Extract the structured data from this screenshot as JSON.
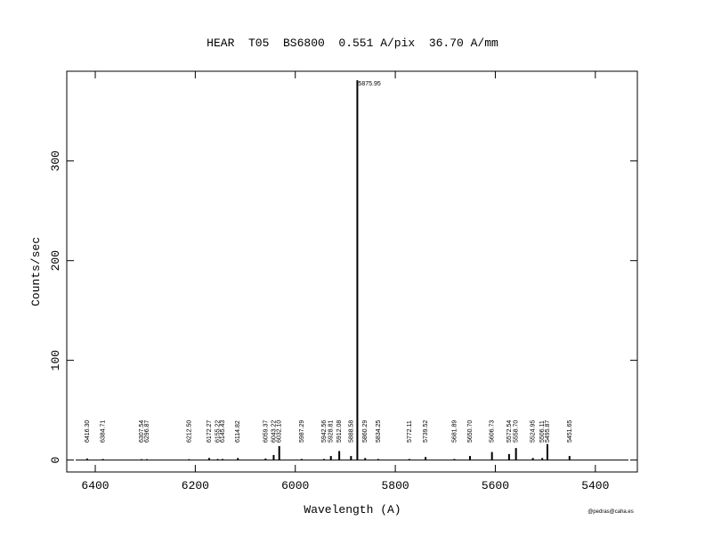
{
  "chart_data": {
    "type": "spectrum",
    "title": "HEAR  T05  BS6800  0.551 A/pix  36.70 A/mm",
    "xlabel": "Wavelength (A)",
    "ylabel": "Counts/sec",
    "footer": "@pedras@caha.es",
    "color": "#000000",
    "x": [
      6416.3,
      6384.71,
      6307.54,
      6296.87,
      6212.5,
      6172.27,
      6155.22,
      6145.43,
      6114.82,
      6059.37,
      6043.22,
      6032.1,
      5987.29,
      5942.56,
      5928.81,
      5912.08,
      5888.58,
      5875.95,
      5860.29,
      5834.25,
      5772.11,
      5739.52,
      5681.89,
      5650.7,
      5606.73,
      5572.54,
      5558.7,
      5524.95,
      5506.11,
      5495.87,
      5451.65
    ],
    "values": [
      1.5,
      1,
      0.8,
      0.8,
      0.8,
      2,
      1,
      1,
      2,
      1.5,
      5,
      14,
      1,
      1,
      4,
      9,
      4,
      381,
      2,
      1,
      1,
      3,
      1,
      4,
      8,
      6,
      12,
      2,
      2,
      16,
      4
    ],
    "peak_labels": [
      "6416.30",
      "6384.71",
      "6307.54",
      "6296.87",
      "6212.50",
      "6172.27",
      "6155.22",
      "6145.43",
      "6114.82",
      "6059.37",
      "6043.22",
      "6032.10",
      "5987.29",
      "5942.56",
      "5928.81",
      "5912.08",
      "5888.58",
      "5860.29",
      "5834.25",
      "5772.11",
      "5739.52",
      "5681.89",
      "5650.70",
      "5606.73",
      "5572.54",
      "5558.70",
      "5524.95",
      "5506.11",
      "5495.87",
      "5451.65"
    ],
    "top_label": "5875.95",
    "xlim": [
      6457,
      5316
    ],
    "ylim": [
      -12,
      390
    ],
    "xticks": [
      6400,
      6200,
      6000,
      5800,
      5600,
      5400
    ],
    "yticks": [
      0,
      100,
      200,
      300
    ]
  }
}
